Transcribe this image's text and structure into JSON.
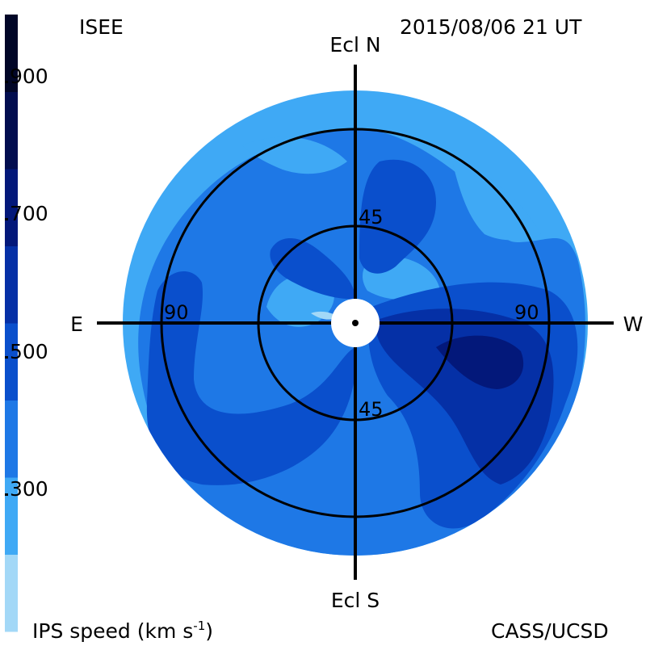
{
  "header": {
    "left": "ISEE",
    "right": "2015/08/06 21 UT"
  },
  "footer": {
    "left": "IPS speed (km s",
    "left_sup": "-1",
    "left_close": ")",
    "right": "CASS/UCSD"
  },
  "colorbar": {
    "labels": [
      "900",
      "700",
      "500",
      "300"
    ],
    "bands": [
      {
        "range": [
          200,
          300
        ],
        "color": "#a3d8f7"
      },
      {
        "range": [
          300,
          400
        ],
        "color": "#3fa9f5"
      },
      {
        "range": [
          400,
          500
        ],
        "color": "#1e78e6"
      },
      {
        "range": [
          500,
          600
        ],
        "color": "#0a4fcc"
      },
      {
        "range": [
          600,
          700
        ],
        "color": "#0530a6"
      },
      {
        "range": [
          700,
          800
        ],
        "color": "#03187a"
      },
      {
        "range": [
          800,
          900
        ],
        "color": "#020d4f"
      },
      {
        "range": [
          900,
          1000
        ],
        "color": "#010627"
      }
    ]
  },
  "chart_data": {
    "type": "heatmap",
    "projection": "polar sky map",
    "axes": {
      "north": "Ecl N",
      "south": "Ecl S",
      "east": "E",
      "west": "W"
    },
    "ring_labels": {
      "inner_top": "45",
      "inner_bottom": "45",
      "outer_left": "90",
      "outer_right": "90"
    },
    "elongation_rings": [
      45,
      90
    ],
    "colors": {
      "base": "#1e78e6",
      "light": "#3fa9f5",
      "lightest": "#a3d8f7",
      "mid": "#0a4fcc",
      "dark": "#0530a6",
      "darkest": "#03187a"
    }
  }
}
